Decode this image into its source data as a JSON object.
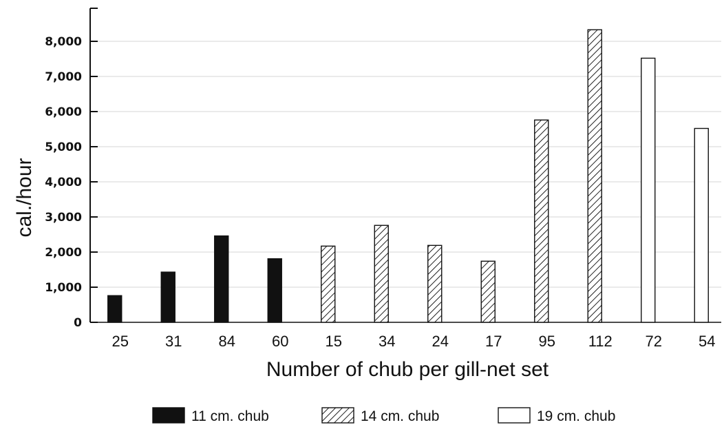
{
  "chart_data": {
    "type": "bar",
    "title": "",
    "xlabel": "Number of chub per gill-net set",
    "ylabel": "cal./hour",
    "ylim": [
      0,
      8000
    ],
    "yticks": [
      "0",
      "1,000",
      "2,000",
      "3,000",
      "4,000",
      "5,000",
      "6,000",
      "7,000",
      "8,000"
    ],
    "ytick_values": [
      0,
      1000,
      2000,
      3000,
      4000,
      5000,
      6000,
      7000,
      8000
    ],
    "grid": true,
    "legend_position": "bottom",
    "categories": [
      "25",
      "31",
      "84",
      "60",
      "15",
      "34",
      "24",
      "17",
      "95",
      "112",
      "72",
      "54"
    ],
    "series": [
      {
        "name": "11 cm. chub",
        "fill": "solid",
        "color": "#111111",
        "values": [
          760,
          1430,
          2460,
          1810,
          null,
          null,
          null,
          null,
          null,
          null,
          null,
          null
        ]
      },
      {
        "name": "14 cm. chub",
        "fill": "hatched",
        "color": "#222222",
        "values": [
          null,
          null,
          null,
          null,
          2170,
          2760,
          2190,
          1740,
          5760,
          8330,
          null,
          null
        ]
      },
      {
        "name": "19 cm. chub",
        "fill": "open",
        "color": "#ffffff",
        "values": [
          null,
          null,
          null,
          null,
          null,
          null,
          null,
          null,
          null,
          null,
          7520,
          5520
        ]
      }
    ]
  }
}
